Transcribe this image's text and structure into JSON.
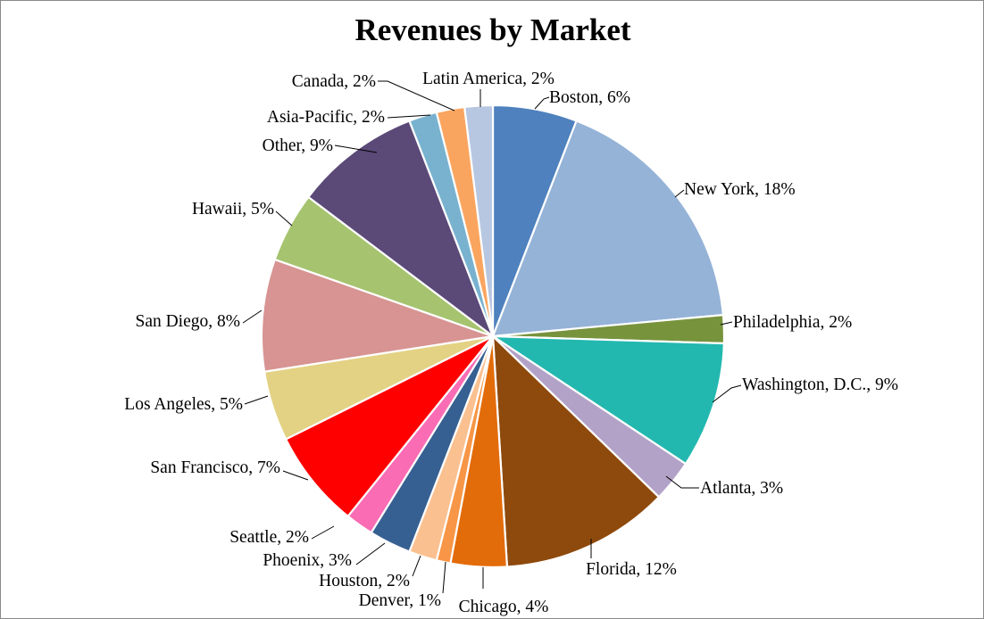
{
  "chart_data": {
    "type": "pie",
    "title": "Revenues by Market",
    "value_format": "percent",
    "legend": "none",
    "labels_position": "outside-with-leader-lines",
    "start_angle_deg": 0,
    "direction": "clockwise",
    "colors": {
      "background": "#FFFFFF",
      "frame_border": "#898989",
      "slice_separator": "#FFFFFF",
      "label_text": "#000000",
      "leader_line": "#000000"
    },
    "slices": [
      {
        "id": "boston",
        "name": "Boston",
        "value": 6,
        "label": "Boston, 6%",
        "color": "#4E81BD"
      },
      {
        "id": "new-york",
        "name": "New York",
        "value": 18,
        "label": "New York, 18%",
        "color": "#95B3D7"
      },
      {
        "id": "philadelphia",
        "name": "Philadelphia",
        "value": 2,
        "label": "Philadelphia, 2%",
        "color": "#77933C"
      },
      {
        "id": "washington-dc",
        "name": "Washington, D.C.",
        "value": 9,
        "label": "Washington, D.C., 9%",
        "color": "#23B8AF"
      },
      {
        "id": "atlanta",
        "name": "Atlanta",
        "value": 3,
        "label": "Atlanta, 3%",
        "color": "#B3A2C7"
      },
      {
        "id": "florida",
        "name": "Florida",
        "value": 12,
        "label": "Florida, 12%",
        "color": "#8E4A0C"
      },
      {
        "id": "chicago",
        "name": "Chicago",
        "value": 4,
        "label": "Chicago, 4%",
        "color": "#E36C0A"
      },
      {
        "id": "denver",
        "name": "Denver",
        "value": 1,
        "label": "Denver, 1%",
        "color": "#F79646"
      },
      {
        "id": "houston",
        "name": "Houston",
        "value": 2,
        "label": "Houston, 2%",
        "color": "#FAC090"
      },
      {
        "id": "phoenix",
        "name": "Phoenix",
        "value": 3,
        "label": "Phoenix, 3%",
        "color": "#376092"
      },
      {
        "id": "seattle",
        "name": "Seattle",
        "value": 2,
        "label": "Seattle, 2%",
        "color": "#FA6CB4"
      },
      {
        "id": "san-francisco",
        "name": "San Francisco",
        "value": 7,
        "label": "San Francisco, 7%",
        "color": "#FE0000"
      },
      {
        "id": "los-angeles",
        "name": "Los Angeles",
        "value": 5,
        "label": "Los Angeles, 5%",
        "color": "#E3D284"
      },
      {
        "id": "san-diego",
        "name": "San Diego",
        "value": 8,
        "label": "San Diego, 8%",
        "color": "#D79492"
      },
      {
        "id": "hawaii",
        "name": "Hawaii",
        "value": 5,
        "label": "Hawaii, 5%",
        "color": "#A6C36F"
      },
      {
        "id": "other",
        "name": "Other",
        "value": 9,
        "label": "Other, 9%",
        "color": "#5B4A78"
      },
      {
        "id": "asia-pacific",
        "name": "Asia-Pacific",
        "value": 2,
        "label": "Asia-Pacific, 2%",
        "color": "#79B2CF"
      },
      {
        "id": "canada",
        "name": "Canada",
        "value": 2,
        "label": "Canada, 2%",
        "color": "#FAA55F"
      },
      {
        "id": "latin-america",
        "name": "Latin America",
        "value": 2,
        "label": "Latin America, 2%",
        "color": "#B8C7E1"
      }
    ]
  }
}
